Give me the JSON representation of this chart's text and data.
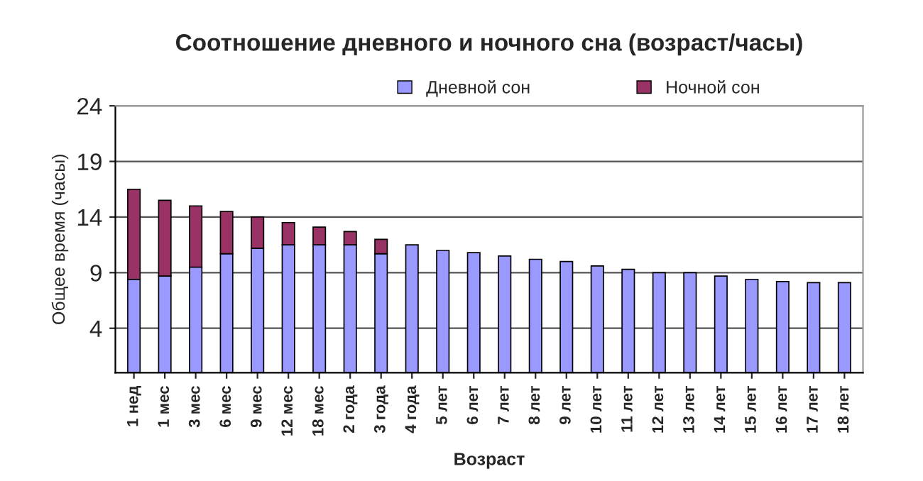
{
  "chart_data": {
    "type": "bar",
    "title": "Соотношение дневного и ночного сна (возраст/часы)",
    "xlabel": "Возраст",
    "ylabel": "Общее время (часы)",
    "categories": [
      "1 нед",
      "1 мес",
      "3 мес",
      "6 мес",
      "9 мес",
      "12 мес",
      "18 мес",
      "2 года",
      "3 года",
      "4 года",
      "5 лет",
      "6 лет",
      "7 лет",
      "8 лет",
      "9 лет",
      "10 лет",
      "11 лет",
      "12 лет",
      "13 лет",
      "14 лет",
      "15 лет",
      "16 лет",
      "17 лет",
      "18 лет"
    ],
    "stacked": true,
    "series": [
      {
        "name": "Дневной сон",
        "color": "#9999ff",
        "values": [
          8.4,
          8.7,
          9.5,
          10.7,
          11.2,
          11.5,
          11.5,
          11.5,
          10.7,
          11.5,
          11.0,
          10.8,
          10.5,
          10.2,
          10.0,
          9.6,
          9.3,
          9.0,
          9.0,
          8.7,
          8.4,
          8.2,
          8.1,
          8.1
        ]
      },
      {
        "name": "Ночной сон",
        "color": "#993366",
        "values": [
          8.1,
          6.8,
          5.5,
          3.8,
          2.8,
          2.0,
          1.6,
          1.2,
          1.3,
          null,
          null,
          null,
          null,
          null,
          null,
          null,
          null,
          null,
          null,
          null,
          null,
          null,
          null,
          null
        ]
      }
    ],
    "ylim": [
      0,
      24
    ],
    "yticks": [
      4,
      9,
      14,
      19,
      24
    ],
    "grid": "y",
    "legend": "top"
  }
}
